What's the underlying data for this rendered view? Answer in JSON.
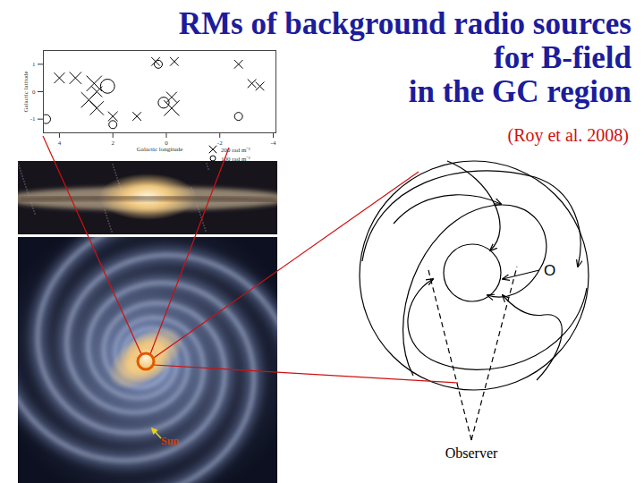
{
  "header": {
    "title_lines": [
      "RMs of background radio sources",
      "for B-field",
      "in the GC region"
    ],
    "citation": "(Roy et al. 2008)"
  },
  "chart_data": {
    "type": "scatter",
    "xlabel": "Galactic longitude",
    "ylabel": "Galactic latitude",
    "xlim": [
      4.6,
      -4.1
    ],
    "ylim": [
      -1.5,
      1.5
    ],
    "xticks": [
      4,
      2,
      0,
      -2,
      -4
    ],
    "yticks": [
      -1,
      0,
      1
    ],
    "grid": false,
    "series": [
      {
        "marker": "x",
        "color": "#000000",
        "x": [
          4.0,
          3.4,
          2.7,
          2.6,
          2.9,
          2.6,
          2.0,
          0.4,
          -0.3,
          -0.2,
          -0.2,
          1.1,
          -2.7,
          -3.2,
          -3.5
        ],
        "y": [
          0.5,
          0.5,
          0.3,
          0.0,
          -0.3,
          -0.6,
          -0.9,
          1.1,
          1.1,
          -0.2,
          -0.6,
          -0.9,
          1.0,
          0.3,
          0.2
        ],
        "rm": [
          120,
          150,
          250,
          120,
          250,
          200,
          100,
          80,
          80,
          120,
          250,
          80,
          80,
          80,
          80
        ]
      },
      {
        "marker": "circle",
        "color": "#000000",
        "x": [
          4.5,
          2.2,
          0.3,
          0.1,
          -2.7,
          2.0
        ],
        "y": [
          -1.0,
          0.2,
          1.0,
          -0.4,
          -0.9,
          -1.2
        ],
        "rm": [
          -100,
          -250,
          -80,
          -150,
          -80,
          -80
        ]
      }
    ],
    "legend_items": [
      {
        "marker": "x",
        "value": 200,
        "label": "200 rad m⁻²"
      },
      {
        "marker": "circle",
        "value": 100,
        "label": "100 rad m⁻²"
      }
    ]
  },
  "galaxy": {
    "sun_label": "Sun"
  },
  "diagram": {
    "center_label": "O",
    "observer_label": "Observer"
  }
}
